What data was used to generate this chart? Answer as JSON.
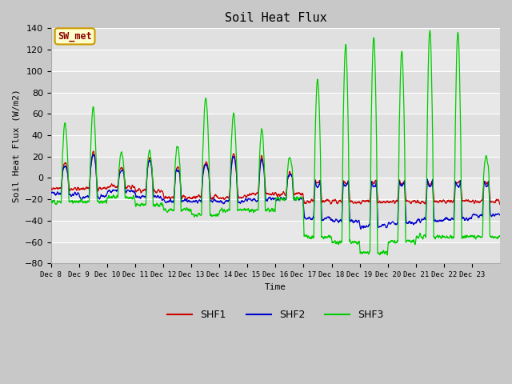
{
  "title": "Soil Heat Flux",
  "ylabel": "Soil Heat Flux (W/m2)",
  "xlabel": "Time",
  "ylim": [
    -80,
    140
  ],
  "yticks": [
    -80,
    -60,
    -40,
    -20,
    0,
    20,
    40,
    60,
    80,
    100,
    120,
    140
  ],
  "xtick_labels": [
    "Dec 8",
    "Dec 9",
    "Dec 10",
    "Dec 11",
    "Dec 12",
    "Dec 13",
    "Dec 14",
    "Dec 15",
    "Dec 16",
    "Dec 17",
    "Dec 18",
    "Dec 19",
    "Dec 20",
    "Dec 21",
    "Dec 22",
    "Dec 23"
  ],
  "shf1_color": "#cc0000",
  "shf2_color": "#0000cc",
  "shf3_color": "#00cc00",
  "plot_bg_color": "#e8e8e8",
  "fig_bg_color": "#c8c8c8",
  "grid_color": "#ffffff",
  "legend_box_facecolor": "#ffffcc",
  "legend_box_edgecolor": "#cc9900",
  "sw_met_color": "#8b0000",
  "font_family": "monospace"
}
